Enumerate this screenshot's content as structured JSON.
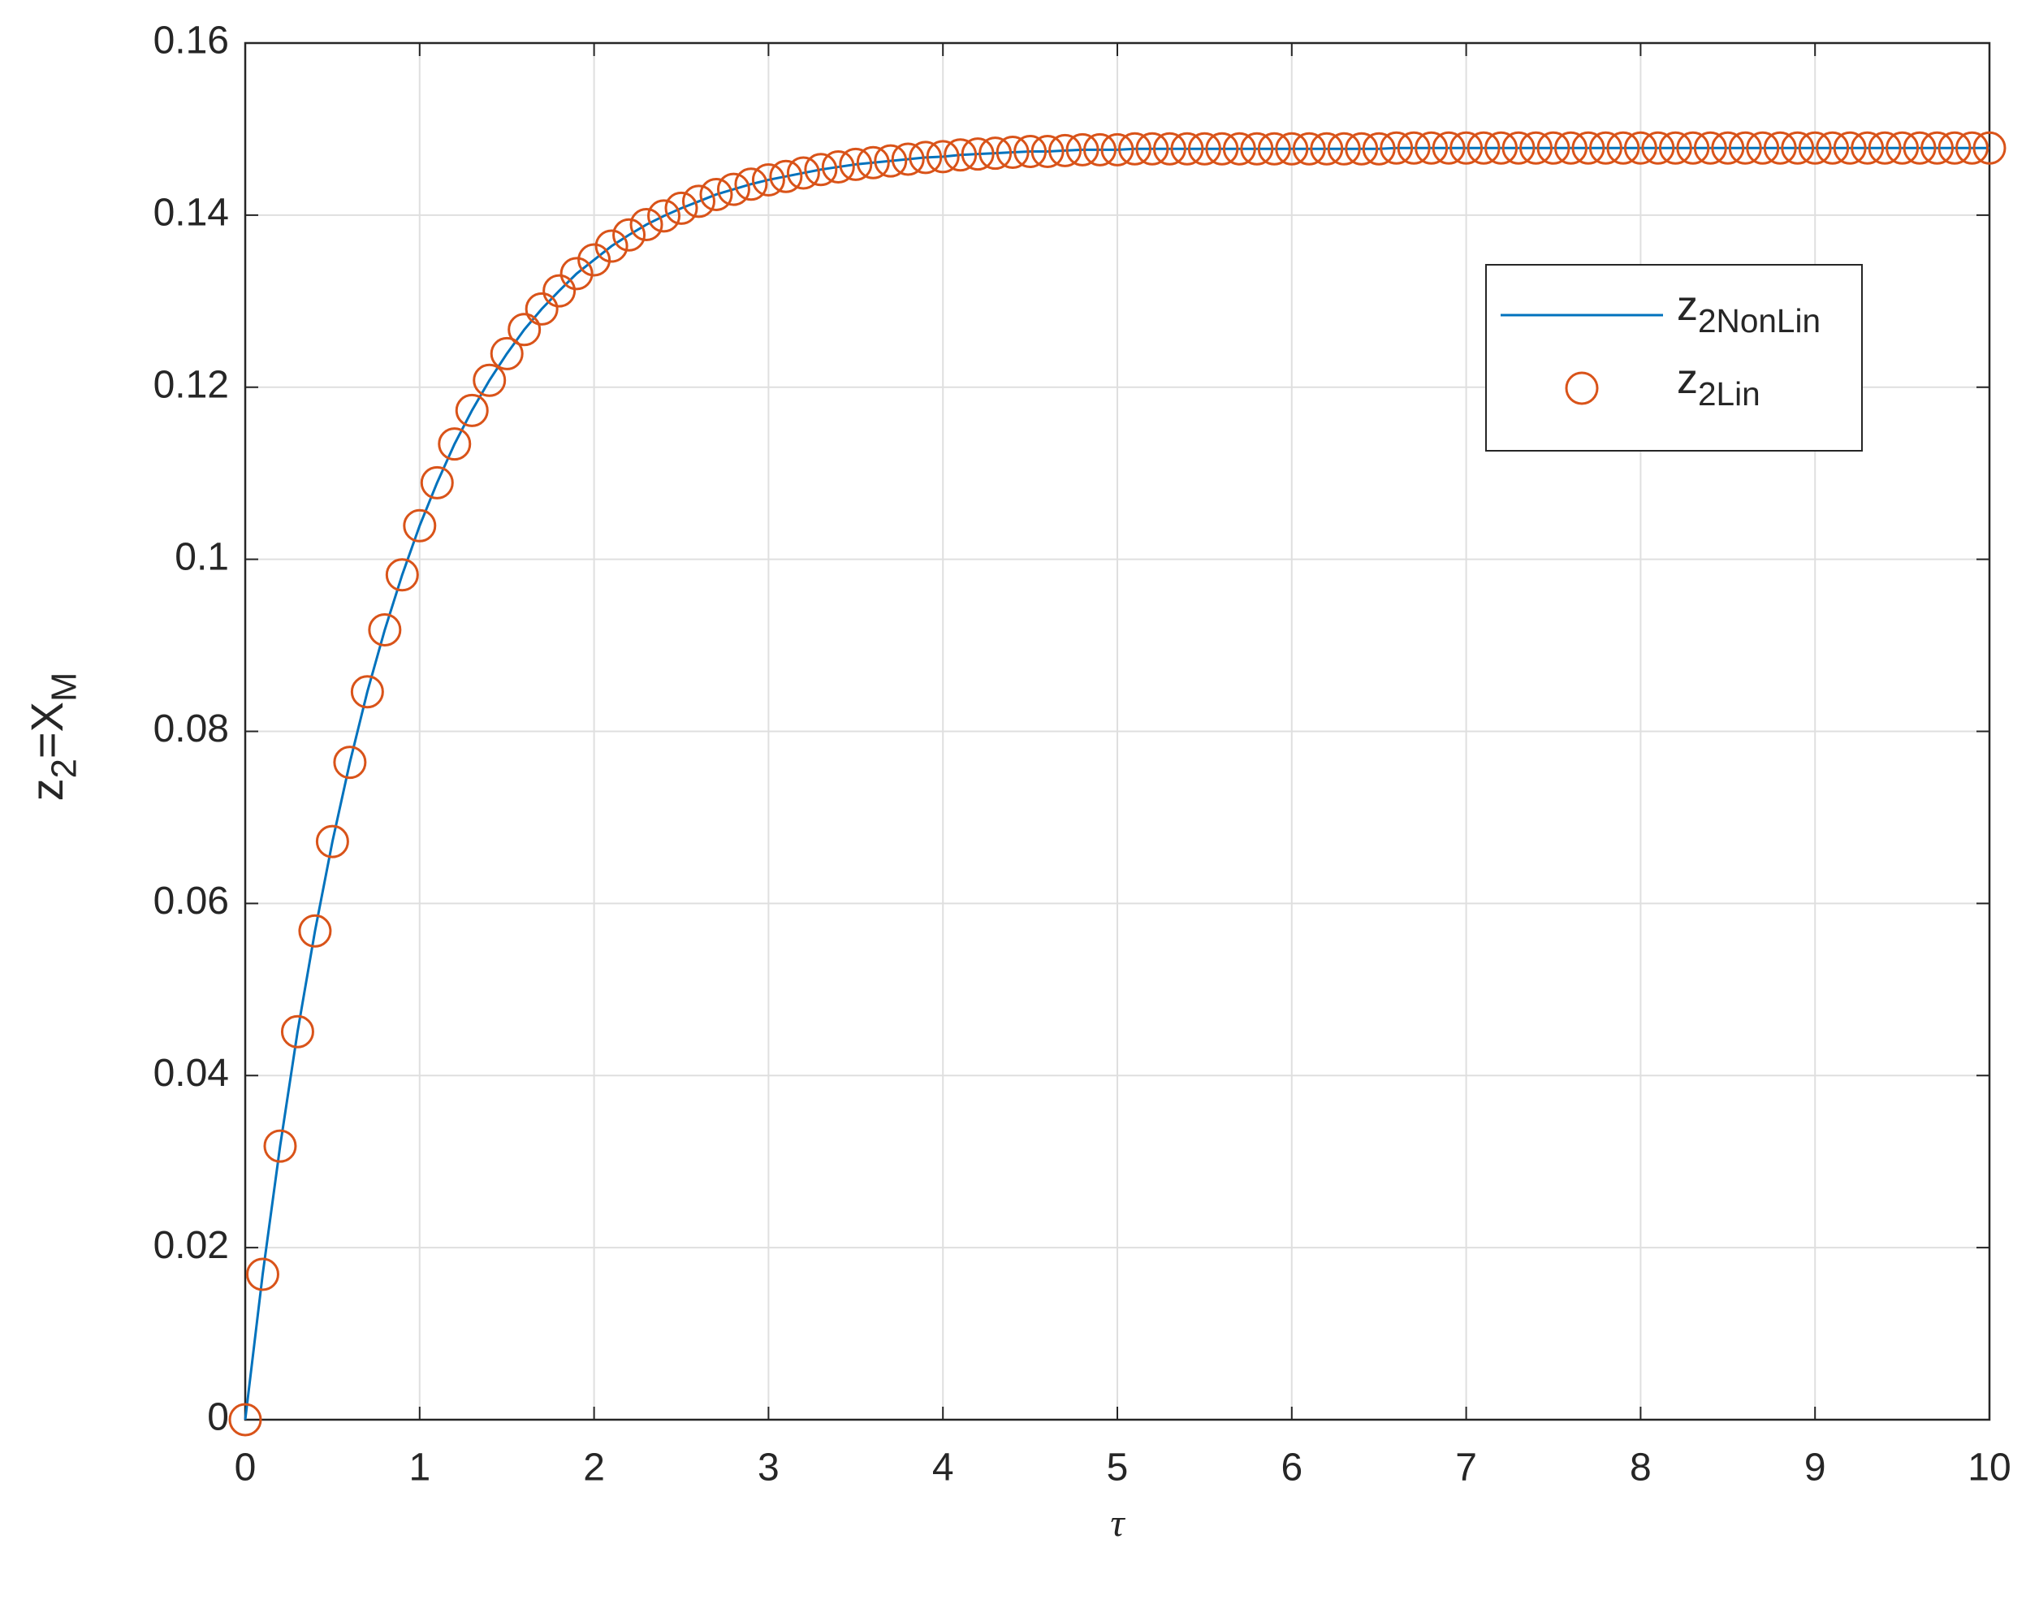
{
  "chart_data": {
    "type": "line",
    "xlabel": "τ",
    "ylabel": "z2=XM",
    "xlim": [
      0,
      10
    ],
    "ylim": [
      0,
      0.16
    ],
    "xticks": [
      0,
      1,
      2,
      3,
      4,
      5,
      6,
      7,
      8,
      9,
      10
    ],
    "yticks": [
      0,
      0.02,
      0.04,
      0.06,
      0.08,
      0.1,
      0.12,
      0.14,
      0.16
    ],
    "grid": true,
    "legend": "upper right",
    "x": [
      0,
      0.1,
      0.2,
      0.3,
      0.4,
      0.5,
      0.6,
      0.7,
      0.8,
      0.9,
      1,
      1.1,
      1.2,
      1.3,
      1.4,
      1.5,
      1.6,
      1.7,
      1.8,
      1.9,
      2,
      2.1,
      2.2,
      2.3,
      2.4,
      2.5,
      2.6,
      2.7,
      2.8,
      2.9,
      3,
      3.1,
      3.2,
      3.3,
      3.4,
      3.5,
      3.6,
      3.7,
      3.8,
      3.9,
      4,
      4.1,
      4.2,
      4.3,
      4.4,
      4.5,
      4.6,
      4.7,
      4.8,
      4.9,
      5,
      5.1,
      5.2,
      5.3,
      5.4,
      5.5,
      5.6,
      5.7,
      5.8,
      5.9,
      6,
      6.1,
      6.2,
      6.3,
      6.4,
      6.5,
      6.6,
      6.7,
      6.8,
      6.9,
      7,
      7.1,
      7.2,
      7.3,
      7.4,
      7.5,
      7.6,
      7.7,
      7.8,
      7.9,
      8,
      8.1,
      8.2,
      8.3,
      8.4,
      8.5,
      8.6,
      8.7,
      8.8,
      8.9,
      9,
      9.1,
      9.2,
      9.3,
      9.4,
      9.5,
      9.6,
      9.7,
      9.8,
      9.9,
      10
    ],
    "series": [
      {
        "name": "z2NonLin",
        "color": "#0072BD",
        "mode": "line",
        "values": [
          0,
          0.0169,
          0.0318,
          0.0451,
          0.0568,
          0.0672,
          0.0764,
          0.0846,
          0.0918,
          0.0982,
          0.1039,
          0.1089,
          0.1134,
          0.1173,
          0.1208,
          0.1239,
          0.1267,
          0.1291,
          0.1312,
          0.1332,
          0.1348,
          0.1364,
          0.1377,
          0.1389,
          0.1399,
          0.1408,
          0.1416,
          0.1424,
          0.143,
          0.1436,
          0.1441,
          0.1445,
          0.1449,
          0.1453,
          0.1456,
          0.1459,
          0.1461,
          0.1463,
          0.1465,
          0.1467,
          0.1468,
          0.147,
          0.1471,
          0.1472,
          0.1473,
          0.1474,
          0.1474,
          0.1475,
          0.1476,
          0.1476,
          0.1476,
          0.1477,
          0.1477,
          0.1477,
          0.1477,
          0.1477,
          0.1477,
          0.1477,
          0.1477,
          0.1477,
          0.1477,
          0.1477,
          0.1477,
          0.1477,
          0.1477,
          0.1477,
          0.1478,
          0.1478,
          0.1478,
          0.1478,
          0.1478,
          0.1478,
          0.1478,
          0.1478,
          0.1478,
          0.1478,
          0.1478,
          0.1478,
          0.1478,
          0.1478,
          0.1478,
          0.1478,
          0.1478,
          0.1478,
          0.1478,
          0.1478,
          0.1478,
          0.1478,
          0.1478,
          0.1478,
          0.1478,
          0.1478,
          0.1478,
          0.1478,
          0.1478,
          0.1478,
          0.1478,
          0.1478,
          0.1478,
          0.1478,
          0.1478
        ]
      },
      {
        "name": "z2Lin",
        "color": "#D95319",
        "mode": "markers",
        "values": [
          0,
          0.0169,
          0.0318,
          0.0451,
          0.0568,
          0.0672,
          0.0764,
          0.0846,
          0.0918,
          0.0982,
          0.1039,
          0.1089,
          0.1134,
          0.1173,
          0.1208,
          0.1239,
          0.1267,
          0.1291,
          0.1312,
          0.1332,
          0.1348,
          0.1364,
          0.1377,
          0.1389,
          0.1399,
          0.1408,
          0.1416,
          0.1424,
          0.143,
          0.1436,
          0.1441,
          0.1445,
          0.1449,
          0.1453,
          0.1456,
          0.1459,
          0.1461,
          0.1463,
          0.1465,
          0.1467,
          0.1468,
          0.147,
          0.1471,
          0.1472,
          0.1473,
          0.1474,
          0.1474,
          0.1475,
          0.1476,
          0.1476,
          0.1476,
          0.1477,
          0.1477,
          0.1477,
          0.1477,
          0.1477,
          0.1477,
          0.1477,
          0.1477,
          0.1477,
          0.1477,
          0.1477,
          0.1477,
          0.1477,
          0.1477,
          0.1477,
          0.1478,
          0.1478,
          0.1478,
          0.1478,
          0.1478,
          0.1478,
          0.1478,
          0.1478,
          0.1478,
          0.1478,
          0.1478,
          0.1478,
          0.1478,
          0.1478,
          0.1478,
          0.1478,
          0.1478,
          0.1478,
          0.1478,
          0.1478,
          0.1478,
          0.1478,
          0.1478,
          0.1478,
          0.1478,
          0.1478,
          0.1478,
          0.1478,
          0.1478,
          0.1478,
          0.1478,
          0.1478,
          0.1478,
          0.1478,
          0.1478
        ]
      }
    ]
  }
}
